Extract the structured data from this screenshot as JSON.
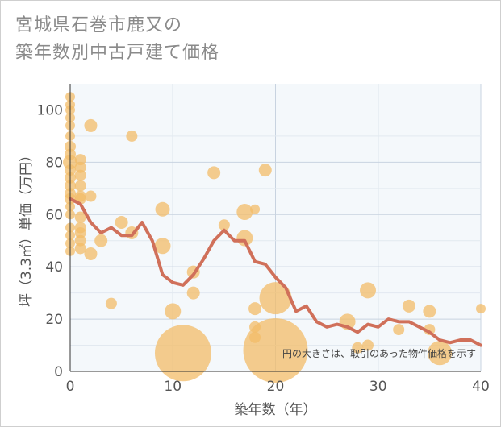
{
  "title_line1": "宮城県石巻市鹿又の",
  "title_line2": "築年数別中古戸建て価格",
  "chart_data": {
    "type": "scatter+line",
    "title": "宮城県石巻市鹿又の築年数別中古戸建て価格",
    "xlabel": "築年数（年）",
    "ylabel": "坪（3.3㎡）単価（万円）",
    "xlim": [
      0,
      40
    ],
    "ylim": [
      0,
      110
    ],
    "x_ticks": [
      0,
      10,
      20,
      30,
      40
    ],
    "y_ticks": [
      0,
      20,
      40,
      60,
      80,
      100
    ],
    "annotation": "円の大きさは、取引のあった物件価格を示す",
    "colors": {
      "bubble": "#f3bc68",
      "line": "#d0705a",
      "grid": "#c8d3e0",
      "plot_bg": "#f4f8fb"
    },
    "scatter": [
      {
        "x": 0,
        "y": 105,
        "size": 6
      },
      {
        "x": 0,
        "y": 102,
        "size": 6
      },
      {
        "x": 0,
        "y": 100,
        "size": 6
      },
      {
        "x": 0,
        "y": 97,
        "size": 6
      },
      {
        "x": 0,
        "y": 94,
        "size": 6
      },
      {
        "x": 0,
        "y": 90,
        "size": 6
      },
      {
        "x": 0,
        "y": 86,
        "size": 7
      },
      {
        "x": 0,
        "y": 83,
        "size": 7
      },
      {
        "x": 0,
        "y": 80,
        "size": 9
      },
      {
        "x": 0,
        "y": 77,
        "size": 7
      },
      {
        "x": 0,
        "y": 74,
        "size": 7
      },
      {
        "x": 0,
        "y": 71,
        "size": 7
      },
      {
        "x": 0,
        "y": 68,
        "size": 7
      },
      {
        "x": 0,
        "y": 66,
        "size": 7
      },
      {
        "x": 0,
        "y": 63,
        "size": 6
      },
      {
        "x": 0,
        "y": 60,
        "size": 6
      },
      {
        "x": 0,
        "y": 55,
        "size": 6
      },
      {
        "x": 0,
        "y": 52,
        "size": 6
      },
      {
        "x": 0,
        "y": 49,
        "size": 6
      },
      {
        "x": 0,
        "y": 46,
        "size": 6
      },
      {
        "x": 1,
        "y": 81,
        "size": 7
      },
      {
        "x": 1,
        "y": 78,
        "size": 7
      },
      {
        "x": 1,
        "y": 75,
        "size": 7
      },
      {
        "x": 1,
        "y": 71,
        "size": 7
      },
      {
        "x": 1,
        "y": 67,
        "size": 7
      },
      {
        "x": 1,
        "y": 66,
        "size": 7
      },
      {
        "x": 1,
        "y": 59,
        "size": 7
      },
      {
        "x": 1,
        "y": 55,
        "size": 7
      },
      {
        "x": 1,
        "y": 53,
        "size": 7
      },
      {
        "x": 1,
        "y": 50,
        "size": 7
      },
      {
        "x": 1,
        "y": 47,
        "size": 7
      },
      {
        "x": 2,
        "y": 94,
        "size": 8
      },
      {
        "x": 2,
        "y": 67,
        "size": 7
      },
      {
        "x": 2,
        "y": 45,
        "size": 8
      },
      {
        "x": 3,
        "y": 50,
        "size": 8
      },
      {
        "x": 4,
        "y": 26,
        "size": 7
      },
      {
        "x": 5,
        "y": 57,
        "size": 8
      },
      {
        "x": 6,
        "y": 90,
        "size": 7
      },
      {
        "x": 6,
        "y": 53,
        "size": 8
      },
      {
        "x": 9,
        "y": 62,
        "size": 9
      },
      {
        "x": 9,
        "y": 48,
        "size": 10
      },
      {
        "x": 10,
        "y": 23,
        "size": 10
      },
      {
        "x": 11,
        "y": 7,
        "size": 35
      },
      {
        "x": 12,
        "y": 38,
        "size": 8
      },
      {
        "x": 12,
        "y": 30,
        "size": 8
      },
      {
        "x": 14,
        "y": 76,
        "size": 8
      },
      {
        "x": 15,
        "y": 56,
        "size": 7
      },
      {
        "x": 17,
        "y": 61,
        "size": 10
      },
      {
        "x": 17,
        "y": 51,
        "size": 10
      },
      {
        "x": 18,
        "y": 62,
        "size": 6
      },
      {
        "x": 18,
        "y": 24,
        "size": 8
      },
      {
        "x": 18,
        "y": 17,
        "size": 7
      },
      {
        "x": 18,
        "y": 13,
        "size": 7
      },
      {
        "x": 19,
        "y": 77,
        "size": 8
      },
      {
        "x": 20,
        "y": 28,
        "size": 20
      },
      {
        "x": 20,
        "y": 8,
        "size": 40
      },
      {
        "x": 27,
        "y": 19,
        "size": 10
      },
      {
        "x": 28,
        "y": 9,
        "size": 7
      },
      {
        "x": 29,
        "y": 31,
        "size": 10
      },
      {
        "x": 29,
        "y": 10,
        "size": 7
      },
      {
        "x": 32,
        "y": 16,
        "size": 7
      },
      {
        "x": 33,
        "y": 25,
        "size": 8
      },
      {
        "x": 35,
        "y": 23,
        "size": 8
      },
      {
        "x": 35,
        "y": 16,
        "size": 7
      },
      {
        "x": 36,
        "y": 7,
        "size": 15
      },
      {
        "x": 40,
        "y": 24,
        "size": 6
      }
    ],
    "line": {
      "x": [
        0,
        1,
        2,
        3,
        4,
        5,
        6,
        7,
        8,
        9,
        10,
        11,
        12,
        13,
        14,
        15,
        16,
        17,
        18,
        19,
        20,
        21,
        22,
        23,
        24,
        25,
        26,
        27,
        28,
        29,
        30,
        31,
        32,
        33,
        34,
        35,
        36,
        37,
        38,
        39,
        40
      ],
      "y": [
        66,
        64,
        57,
        53,
        55,
        52,
        52,
        57,
        50,
        37,
        34,
        33,
        37,
        43,
        50,
        54,
        50,
        50,
        42,
        41,
        36,
        32,
        23,
        25,
        19,
        17,
        18,
        17,
        15,
        18,
        17,
        20,
        19,
        19,
        17,
        15,
        12,
        11,
        12,
        12,
        10
      ]
    }
  }
}
